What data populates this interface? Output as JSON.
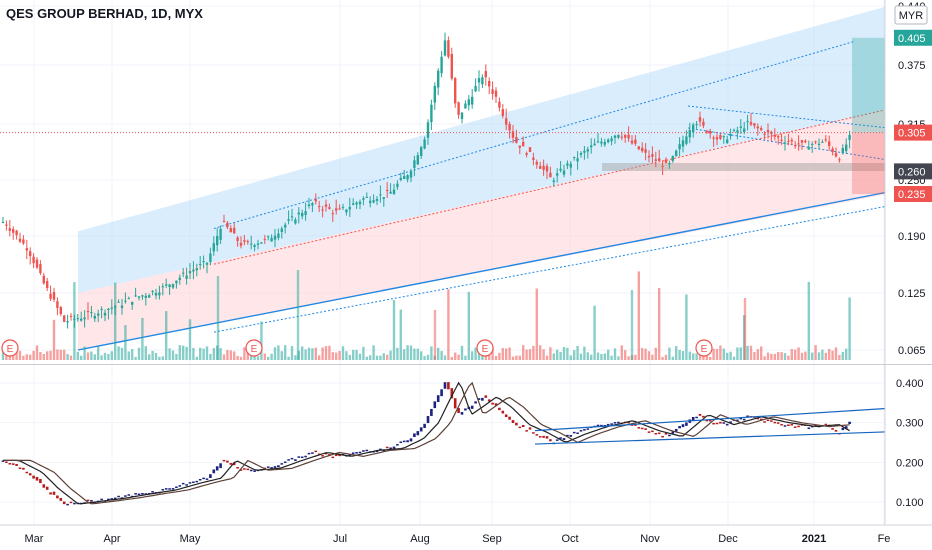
{
  "header": {
    "title": "QES GROUP BERHAD, 1D, MYX",
    "currency": "MYR"
  },
  "colors": {
    "up": "#26a69a",
    "down": "#ef5350",
    "blue_band": "#bbdefb",
    "red_band": "#ffcdd2",
    "trend_line": "#1e88e5",
    "navy": "#1a237e",
    "maroon": "#b71c1c"
  },
  "chart_data": [
    {
      "type": "candlestick",
      "panel": "price",
      "x_tick_labels": [
        "Mar",
        "Apr",
        "May",
        "Jul",
        "Aug",
        "Sep",
        "Oct",
        "Nov",
        "Dec",
        "2021",
        "Fe"
      ],
      "y_tick_labels": [
        "0.065",
        "0.125",
        "0.190",
        "0.250",
        "0.315",
        "0.375",
        "0.440"
      ],
      "ylim": [
        0.045,
        0.44
      ],
      "price_labels": [
        {
          "value": "0.405",
          "color": "#26a69a"
        },
        {
          "value": "0.305",
          "color": "#ef5350"
        },
        {
          "value": "0.260",
          "color": "#434651"
        },
        {
          "value": "0.235",
          "color": "#ef5350"
        }
      ],
      "earnings_markers": [
        "E",
        "E",
        "E",
        "E"
      ],
      "close_path": [
        {
          "x": "2020-02-05",
          "close": 0.205
        },
        {
          "x": "2020-02-15",
          "close": 0.19
        },
        {
          "x": "2020-02-25",
          "close": 0.175
        },
        {
          "x": "2020-03-05",
          "close": 0.135
        },
        {
          "x": "2020-03-13",
          "close": 0.095
        },
        {
          "x": "2020-03-20",
          "close": 0.1
        },
        {
          "x": "2020-04-01",
          "close": 0.11
        },
        {
          "x": "2020-04-10",
          "close": 0.12
        },
        {
          "x": "2020-04-20",
          "close": 0.13
        },
        {
          "x": "2020-05-01",
          "close": 0.15
        },
        {
          "x": "2020-05-08",
          "close": 0.16
        },
        {
          "x": "2020-05-14",
          "close": 0.205
        },
        {
          "x": "2020-05-22",
          "close": 0.18
        },
        {
          "x": "2020-06-01",
          "close": 0.185
        },
        {
          "x": "2020-06-10",
          "close": 0.205
        },
        {
          "x": "2020-06-20",
          "close": 0.225
        },
        {
          "x": "2020-06-30",
          "close": 0.215
        },
        {
          "x": "2020-07-10",
          "close": 0.23
        },
        {
          "x": "2020-07-20",
          "close": 0.235
        },
        {
          "x": "2020-07-28",
          "close": 0.26
        },
        {
          "x": "2020-08-03",
          "close": 0.3
        },
        {
          "x": "2020-08-08",
          "close": 0.36
        },
        {
          "x": "2020-08-12",
          "close": 0.405
        },
        {
          "x": "2020-08-17",
          "close": 0.32
        },
        {
          "x": "2020-08-22",
          "close": 0.34
        },
        {
          "x": "2020-08-28",
          "close": 0.365
        },
        {
          "x": "2020-09-03",
          "close": 0.34
        },
        {
          "x": "2020-09-10",
          "close": 0.295
        },
        {
          "x": "2020-09-17",
          "close": 0.275
        },
        {
          "x": "2020-09-24",
          "close": 0.25
        },
        {
          "x": "2020-10-01",
          "close": 0.27
        },
        {
          "x": "2020-10-10",
          "close": 0.29
        },
        {
          "x": "2020-10-20",
          "close": 0.305
        },
        {
          "x": "2020-10-30",
          "close": 0.28
        },
        {
          "x": "2020-11-08",
          "close": 0.265
        },
        {
          "x": "2020-11-18",
          "close": 0.32
        },
        {
          "x": "2020-11-28",
          "close": 0.295
        },
        {
          "x": "2020-12-08",
          "close": 0.315
        },
        {
          "x": "2020-12-18",
          "close": 0.3
        },
        {
          "x": "2020-12-28",
          "close": 0.29
        },
        {
          "x": "2021-01-06",
          "close": 0.295
        },
        {
          "x": "2021-01-12",
          "close": 0.275
        },
        {
          "x": "2021-01-18",
          "close": 0.305
        }
      ]
    },
    {
      "type": "line",
      "panel": "indicator",
      "y_tick_labels": [
        "0.100",
        "0.200",
        "0.300",
        "0.400"
      ],
      "ylim": [
        0.06,
        0.42
      ]
    }
  ]
}
